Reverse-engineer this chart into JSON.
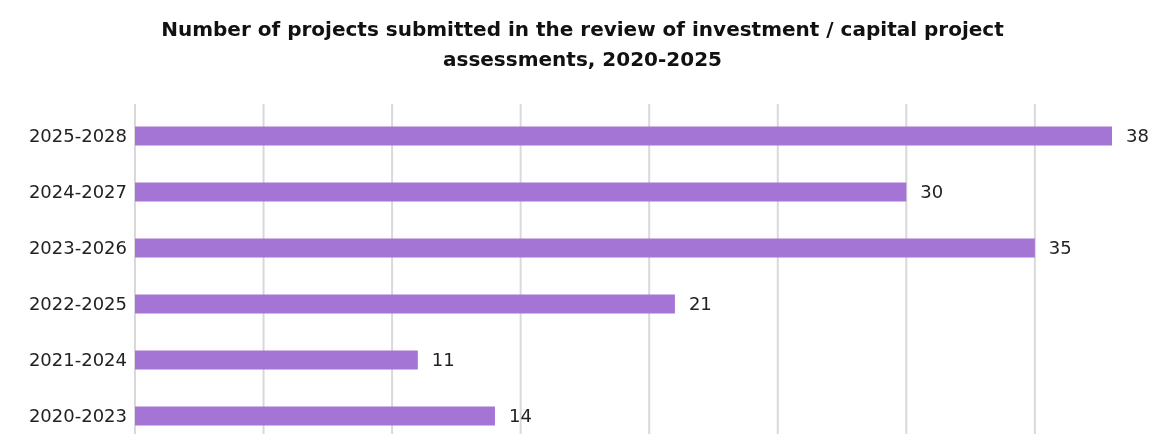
{
  "chart_data": {
    "type": "bar",
    "orientation": "horizontal",
    "title": "Number of projects submitted in the review of investment / capital project assessments, 2020-2025",
    "categories": [
      "2025-2028",
      "2024-2027",
      "2023-2026",
      "2022-2025",
      "2021-2024",
      "2020-2023"
    ],
    "values": [
      38,
      30,
      35,
      21,
      11,
      14
    ],
    "color": "#a575d6",
    "data_labels": true,
    "grid": "x",
    "tick_labels": "y",
    "xlim": [
      0,
      38
    ],
    "xticks": [
      {
        "value": 0,
        "label": null
      },
      {
        "value": 5,
        "label": null
      },
      {
        "value": 10,
        "label": null
      },
      {
        "value": 15,
        "label": null
      },
      {
        "value": 20,
        "label": null
      },
      {
        "value": 25,
        "label": null
      },
      {
        "value": 30,
        "label": null
      },
      {
        "value": 35,
        "label": null
      }
    ]
  }
}
